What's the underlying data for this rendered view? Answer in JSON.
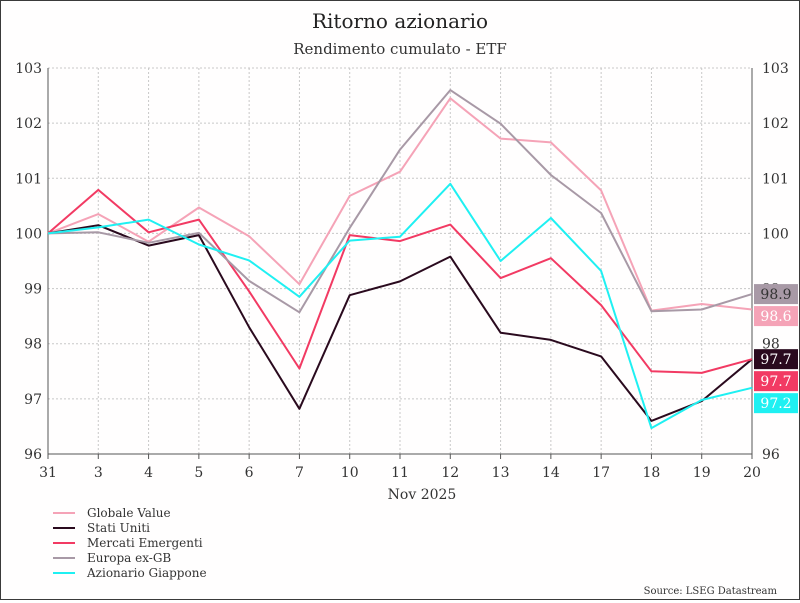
{
  "chart_data": {
    "type": "line",
    "title": "Ritorno azionario",
    "subtitle": "Rendimento cumulato - ETF",
    "xlabel": "Nov 2025",
    "source": "Source: LSEG Datastream",
    "categories": [
      "31",
      "3",
      "4",
      "5",
      "6",
      "7",
      "10",
      "11",
      "12",
      "13",
      "14",
      "17",
      "18",
      "19",
      "20"
    ],
    "ylim": [
      96,
      103
    ],
    "yticks": [
      96,
      97,
      98,
      99,
      100,
      101,
      102,
      103
    ],
    "grid": true,
    "legend_position": "bottom-left",
    "series": [
      {
        "name": "Globale Value",
        "color": "#f5a3b7",
        "end_label": "98.6",
        "label_text_color": "#ffffff",
        "values": [
          100.0,
          100.35,
          99.85,
          100.47,
          99.95,
          99.08,
          100.68,
          101.12,
          102.45,
          101.72,
          101.65,
          100.78,
          98.6,
          98.72,
          98.62
        ]
      },
      {
        "name": "Stati Uniti",
        "color": "#2a0a1e",
        "end_label": "97.7",
        "label_text_color": "#ffffff",
        "values": [
          100.0,
          100.15,
          99.78,
          99.97,
          98.3,
          96.82,
          98.88,
          99.13,
          99.58,
          98.2,
          98.07,
          97.77,
          96.6,
          96.96,
          97.72
        ]
      },
      {
        "name": "Mercati Emergenti",
        "color": "#f23a63",
        "end_label": "97.7",
        "label_text_color": "#ffffff",
        "values": [
          100.0,
          100.79,
          100.02,
          100.25,
          98.95,
          97.55,
          99.97,
          99.86,
          100.16,
          99.19,
          99.55,
          98.7,
          97.5,
          97.47,
          97.72
        ]
      },
      {
        "name": "Europa ex-GB",
        "color": "#a899a6",
        "end_label": "98.9",
        "label_text_color": "#333333",
        "values": [
          100.0,
          100.02,
          99.83,
          100.01,
          99.14,
          98.57,
          100.1,
          101.52,
          102.6,
          101.99,
          101.06,
          100.37,
          98.59,
          98.62,
          98.9
        ]
      },
      {
        "name": "Azionario Giappone",
        "color": "#1ff0f2",
        "end_label": "97.2",
        "label_text_color": "#ffffff",
        "values": [
          100.0,
          100.11,
          100.25,
          99.8,
          99.51,
          98.85,
          99.87,
          99.94,
          100.9,
          99.5,
          100.28,
          99.32,
          96.47,
          96.98,
          97.2
        ]
      }
    ]
  }
}
